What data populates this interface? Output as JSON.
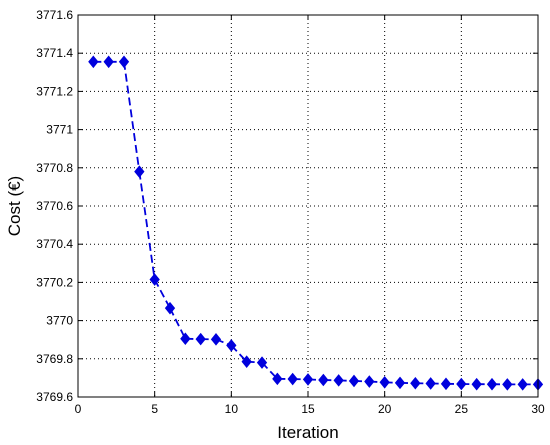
{
  "chart_data": {
    "type": "line",
    "xlabel": "Iteration",
    "ylabel": "Cost (€)",
    "xlim": [
      0,
      30
    ],
    "ylim": [
      3769.6,
      3771.6
    ],
    "x_ticks": [
      0,
      5,
      10,
      15,
      20,
      25,
      30
    ],
    "y_ticks": [
      3769.6,
      3769.8,
      3770,
      3770.2,
      3770.4,
      3770.6,
      3770.8,
      3771,
      3771.2,
      3771.4,
      3771.6
    ],
    "y_tick_labels": [
      "3769.6",
      "3769.8",
      "3770",
      "3770.2",
      "3770.4",
      "3770.6",
      "3770.8",
      "3771",
      "3771.2",
      "3771.4",
      "3771.6"
    ],
    "grid": true,
    "grid_style": "dotted",
    "series": [
      {
        "color": "#0000dd",
        "line_style": "dashed",
        "marker": "diamond",
        "x": [
          1,
          2,
          3,
          4,
          5,
          6,
          7,
          8,
          9,
          10,
          11,
          12,
          13,
          14,
          15,
          16,
          17,
          18,
          19,
          20,
          21,
          22,
          23,
          24,
          25,
          26,
          27,
          28,
          29,
          30
        ],
        "y": [
          3771.355,
          3771.355,
          3771.355,
          3770.78,
          3770.215,
          3770.065,
          3769.905,
          3769.903,
          3769.902,
          3769.87,
          3769.785,
          3769.78,
          3769.695,
          3769.694,
          3769.692,
          3769.689,
          3769.687,
          3769.684,
          3769.681,
          3769.677,
          3769.674,
          3769.672,
          3769.671,
          3769.669,
          3769.668,
          3769.667,
          3769.667,
          3769.666,
          3769.666,
          3769.666
        ]
      }
    ]
  }
}
